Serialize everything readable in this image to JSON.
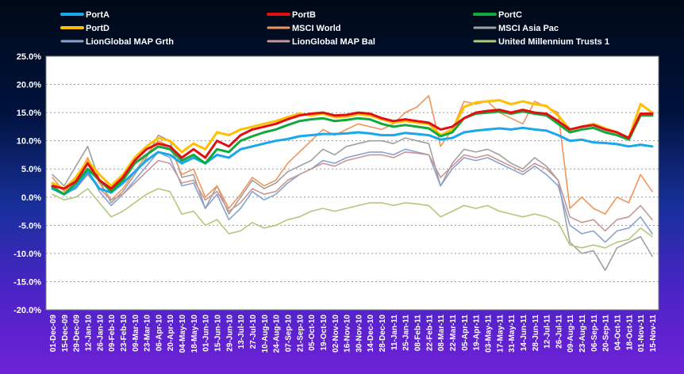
{
  "chart_data": {
    "type": "line",
    "title": "",
    "xlabel": "",
    "ylabel": "",
    "ylim": [
      -20,
      25
    ],
    "ytick_values": [
      -20,
      -15,
      -10,
      -5,
      0,
      5,
      10,
      15,
      20,
      25
    ],
    "ytick_labels": [
      "-20.0%",
      "-15.0%",
      "-10.0%",
      "-5.0%",
      "0.0%",
      "5.0%",
      "10.0%",
      "15.0%",
      "20.0%",
      "25.0%"
    ],
    "grid": "horizontal dotted",
    "legend_position": "top",
    "x": [
      "01-Dec-09",
      "15-Dec-09",
      "29-Dec-09",
      "12-Jan-10",
      "26-Jan-10",
      "09-Feb-10",
      "23-Feb-10",
      "09-Mar-10",
      "23-Mar-10",
      "06-Apr-10",
      "20-Apr-10",
      "04-May-10",
      "18-May-10",
      "01-Jun-10",
      "15-Jun-10",
      "29-Jun-10",
      "13-Jul-10",
      "27-Jul-10",
      "10-Aug-10",
      "24-Aug-10",
      "07-Sep-10",
      "21-Sep-10",
      "05-Oct-10",
      "19-Oct-10",
      "02-Nov-10",
      "16-Nov-10",
      "30-Nov-10",
      "14-Dec-10",
      "28-Dec-10",
      "11-Jan-11",
      "25-Jan-11",
      "08-Feb-11",
      "22-Feb-11",
      "08-Mar-11",
      "22-Mar-11",
      "05-Apr-11",
      "19-Apr-11",
      "03-May-11",
      "17-May-11",
      "31-May-11",
      "14-Jun-11",
      "28-Jun-11",
      "12-Jul-11",
      "26-Jul-11",
      "09-Aug-11",
      "23-Aug-11",
      "06-Sep-11",
      "20-Sep-11",
      "04-Oct-11",
      "18-Oct-11",
      "01-Nov-11",
      "15-Nov-11"
    ],
    "series": [
      {
        "name": "PortA",
        "color": "#1aa7ec",
        "width": 3,
        "values": [
          1.5,
          0.5,
          1.8,
          4.5,
          1.5,
          0.8,
          2.5,
          4.5,
          6.5,
          8.0,
          7.5,
          6.0,
          7.0,
          6.0,
          7.5,
          7.0,
          8.5,
          9.0,
          9.5,
          10.0,
          10.3,
          10.8,
          11.0,
          11.2,
          11.2,
          11.3,
          11.5,
          11.3,
          11.0,
          11.0,
          11.4,
          11.2,
          11.0,
          10.2,
          10.5,
          11.5,
          11.8,
          12.0,
          12.2,
          12.0,
          12.3,
          12.0,
          11.8,
          11.0,
          10.0,
          10.2,
          9.7,
          9.6,
          9.4,
          9.0,
          9.3,
          9.0
        ]
      },
      {
        "name": "PortB",
        "color": "#e10f0f",
        "width": 3,
        "values": [
          2.0,
          1.5,
          2.8,
          6.0,
          3.0,
          1.5,
          3.5,
          6.5,
          8.5,
          9.5,
          9.0,
          7.0,
          8.5,
          7.0,
          10.0,
          9.0,
          11.0,
          12.0,
          12.5,
          13.0,
          13.8,
          14.5,
          14.8,
          15.0,
          14.5,
          14.6,
          15.0,
          14.8,
          14.0,
          13.5,
          13.8,
          13.5,
          13.2,
          12.0,
          12.5,
          14.0,
          15.0,
          15.3,
          15.5,
          15.0,
          15.5,
          15.0,
          14.8,
          13.5,
          12.0,
          12.5,
          12.8,
          12.0,
          11.5,
          10.5,
          14.8,
          14.8
        ]
      },
      {
        "name": "PortC",
        "color": "#11a83e",
        "width": 3,
        "values": [
          1.8,
          0.5,
          2.5,
          5.0,
          3.0,
          1.0,
          3.0,
          6.0,
          7.5,
          9.0,
          8.5,
          6.5,
          7.5,
          6.0,
          8.5,
          8.0,
          10.0,
          10.8,
          11.5,
          12.0,
          12.8,
          13.5,
          13.8,
          14.0,
          13.5,
          13.7,
          14.0,
          13.8,
          13.0,
          12.5,
          12.8,
          12.5,
          12.2,
          10.8,
          11.5,
          14.0,
          14.8,
          15.0,
          15.2,
          14.8,
          15.2,
          14.8,
          14.5,
          13.0,
          11.5,
          12.0,
          12.3,
          11.5,
          11.0,
          10.2,
          14.5,
          14.5
        ]
      },
      {
        "name": "PortD",
        "color": "#ffc000",
        "width": 3,
        "values": [
          2.5,
          1.5,
          3.5,
          6.5,
          4.0,
          2.0,
          4.0,
          7.0,
          9.0,
          10.5,
          10.0,
          8.0,
          9.5,
          8.5,
          11.5,
          11.0,
          12.0,
          12.5,
          13.0,
          13.5,
          14.2,
          14.8,
          14.5,
          14.8,
          14.2,
          14.3,
          14.7,
          14.5,
          13.8,
          13.2,
          13.5,
          13.2,
          13.0,
          11.0,
          12.0,
          16.0,
          16.8,
          17.0,
          17.2,
          16.5,
          17.0,
          16.5,
          16.2,
          14.5,
          12.0,
          12.5,
          13.0,
          12.2,
          11.5,
          10.5,
          16.5,
          15.0
        ]
      },
      {
        "name": "MSCI World",
        "color": "#f0955a",
        "width": 1.6,
        "values": [
          3.5,
          1.0,
          3.0,
          7.0,
          2.5,
          -0.5,
          1.5,
          4.5,
          7.5,
          10.0,
          9.0,
          4.0,
          5.0,
          0.0,
          2.0,
          -2.0,
          0.5,
          3.5,
          2.0,
          3.0,
          6.0,
          8.0,
          10.0,
          12.0,
          11.0,
          12.0,
          13.0,
          12.5,
          12.0,
          13.0,
          15.0,
          16.0,
          18.0,
          9.0,
          12.0,
          17.0,
          16.5,
          17.0,
          15.0,
          14.0,
          13.0,
          17.0,
          16.0,
          15.0,
          -2.0,
          0.0,
          -2.0,
          -3.0,
          0.0,
          -1.0,
          4.0,
          1.0
        ]
      },
      {
        "name": "MSCI Asia Pac",
        "color": "#a0a0a0",
        "width": 1.6,
        "values": [
          4.0,
          2.0,
          5.5,
          9.0,
          3.0,
          -1.0,
          1.0,
          4.0,
          7.0,
          11.0,
          10.0,
          3.5,
          4.0,
          -2.0,
          2.0,
          -3.0,
          0.0,
          3.0,
          1.5,
          2.5,
          4.5,
          5.5,
          6.5,
          8.5,
          7.5,
          9.0,
          9.5,
          10.0,
          10.0,
          9.5,
          10.5,
          10.0,
          9.5,
          2.0,
          6.0,
          8.5,
          8.0,
          8.5,
          7.5,
          6.0,
          5.0,
          7.0,
          5.5,
          3.0,
          -8.0,
          -10.0,
          -9.5,
          -13.0,
          -9.0,
          -8.0,
          -7.0,
          -10.5
        ]
      },
      {
        "name": "LionGlobal MAP Grth",
        "color": "#8aa2cf",
        "width": 1.6,
        "values": [
          2.0,
          0.5,
          2.0,
          5.0,
          1.0,
          -1.5,
          0.5,
          3.0,
          5.5,
          8.0,
          7.0,
          2.0,
          2.5,
          -2.0,
          0.5,
          -4.0,
          -2.0,
          1.0,
          -0.5,
          0.5,
          2.5,
          4.0,
          5.0,
          6.5,
          6.0,
          7.0,
          7.5,
          8.0,
          8.0,
          7.5,
          8.5,
          8.0,
          7.5,
          2.0,
          5.0,
          7.0,
          6.5,
          7.0,
          6.0,
          5.0,
          4.0,
          5.5,
          4.0,
          2.0,
          -5.0,
          -6.5,
          -6.0,
          -8.0,
          -6.0,
          -5.5,
          -3.5,
          -6.5
        ]
      },
      {
        "name": "LionGlobal MAP Bal",
        "color": "#c99696",
        "width": 1.6,
        "values": [
          1.5,
          0.5,
          1.5,
          4.0,
          1.5,
          -0.5,
          0.5,
          2.5,
          4.5,
          6.5,
          6.0,
          2.5,
          3.0,
          -0.5,
          1.0,
          -2.5,
          -1.0,
          1.5,
          0.5,
          1.0,
          3.0,
          4.0,
          5.0,
          6.0,
          5.5,
          6.5,
          7.0,
          7.5,
          7.5,
          7.0,
          8.0,
          7.8,
          7.5,
          3.5,
          5.5,
          7.5,
          7.0,
          7.5,
          6.5,
          5.5,
          4.5,
          6.0,
          5.0,
          3.0,
          -3.5,
          -4.5,
          -4.0,
          -6.0,
          -4.0,
          -3.5,
          -1.5,
          -4.0
        ]
      },
      {
        "name": "United Millennium Trusts 1",
        "color": "#b1c97a",
        "width": 1.6,
        "values": [
          0.5,
          -0.5,
          0.0,
          1.5,
          -1.0,
          -3.5,
          -2.5,
          -1.0,
          0.5,
          1.5,
          1.0,
          -3.0,
          -2.5,
          -5.0,
          -4.0,
          -6.5,
          -6.0,
          -4.5,
          -5.5,
          -5.0,
          -4.0,
          -3.5,
          -2.5,
          -2.0,
          -2.5,
          -2.0,
          -1.5,
          -1.0,
          -1.0,
          -1.5,
          -1.0,
          -1.2,
          -1.5,
          -3.5,
          -2.5,
          -1.5,
          -2.0,
          -1.5,
          -2.5,
          -3.0,
          -3.5,
          -3.0,
          -3.5,
          -4.5,
          -8.5,
          -9.0,
          -8.5,
          -9.0,
          -8.0,
          -7.5,
          -5.5,
          -7.0
        ]
      }
    ]
  }
}
